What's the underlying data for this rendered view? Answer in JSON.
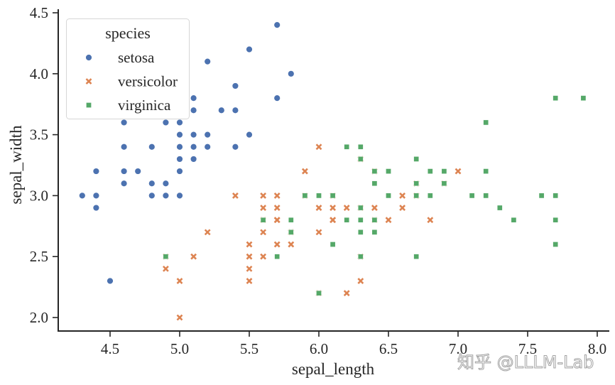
{
  "chart_data": {
    "type": "scatter",
    "title": "",
    "xlabel": "sepal_length",
    "ylabel": "sepal_width",
    "xlim": [
      4.18,
      8.09
    ],
    "ylim": [
      1.89,
      4.53
    ],
    "xticks": [
      4.5,
      5.0,
      5.5,
      6.0,
      6.5,
      7.0,
      7.5,
      8.0
    ],
    "xtick_labels": [
      "4.5",
      "5.0",
      "5.5",
      "6.0",
      "6.5",
      "7.0",
      "7.5",
      "8.0"
    ],
    "yticks": [
      2.0,
      2.5,
      3.0,
      3.5,
      4.0,
      4.5
    ],
    "ytick_labels": [
      "2.0",
      "2.5",
      "3.0",
      "3.5",
      "4.0",
      "4.5"
    ],
    "grid": false,
    "legend": {
      "title": "species",
      "placement": "top-left"
    },
    "series": [
      {
        "name": "setosa",
        "marker": "circle",
        "color": "#4c72b0",
        "points": [
          [
            4.3,
            3.0
          ],
          [
            4.4,
            3.0
          ],
          [
            4.4,
            2.9
          ],
          [
            4.4,
            3.2
          ],
          [
            4.5,
            2.3
          ],
          [
            4.6,
            3.1
          ],
          [
            4.6,
            3.2
          ],
          [
            4.6,
            3.4
          ],
          [
            4.6,
            3.6
          ],
          [
            4.7,
            3.2
          ],
          [
            4.8,
            3.0
          ],
          [
            4.8,
            3.1
          ],
          [
            4.8,
            3.4
          ],
          [
            4.9,
            3.0
          ],
          [
            4.9,
            3.1
          ],
          [
            4.9,
            3.6
          ],
          [
            5.0,
            3.0
          ],
          [
            5.0,
            3.2
          ],
          [
            5.0,
            3.3
          ],
          [
            5.0,
            3.4
          ],
          [
            5.0,
            3.5
          ],
          [
            5.0,
            3.6
          ],
          [
            5.1,
            3.3
          ],
          [
            5.1,
            3.4
          ],
          [
            5.1,
            3.5
          ],
          [
            5.1,
            3.7
          ],
          [
            5.1,
            3.8
          ],
          [
            5.2,
            3.4
          ],
          [
            5.2,
            3.5
          ],
          [
            5.2,
            4.1
          ],
          [
            5.3,
            3.7
          ],
          [
            5.4,
            3.4
          ],
          [
            5.4,
            3.7
          ],
          [
            5.4,
            3.9
          ],
          [
            5.5,
            3.5
          ],
          [
            5.5,
            4.2
          ],
          [
            5.7,
            3.8
          ],
          [
            5.7,
            4.4
          ],
          [
            5.8,
            4.0
          ]
        ]
      },
      {
        "name": "versicolor",
        "marker": "x",
        "color": "#dd8452",
        "points": [
          [
            7.0,
            3.2
          ],
          [
            6.4,
            3.2
          ],
          [
            6.9,
            3.1
          ],
          [
            5.5,
            2.3
          ],
          [
            6.5,
            2.8
          ],
          [
            5.7,
            2.8
          ],
          [
            6.3,
            3.3
          ],
          [
            4.9,
            2.4
          ],
          [
            6.6,
            2.9
          ],
          [
            5.2,
            2.7
          ],
          [
            5.0,
            2.0
          ],
          [
            5.9,
            3.0
          ],
          [
            6.0,
            2.2
          ],
          [
            6.1,
            2.9
          ],
          [
            5.6,
            2.9
          ],
          [
            6.7,
            3.1
          ],
          [
            5.6,
            3.0
          ],
          [
            5.8,
            2.7
          ],
          [
            6.2,
            2.2
          ],
          [
            5.6,
            2.5
          ],
          [
            5.9,
            3.2
          ],
          [
            6.1,
            2.8
          ],
          [
            6.3,
            2.5
          ],
          [
            6.4,
            2.9
          ],
          [
            6.6,
            3.0
          ],
          [
            6.8,
            2.8
          ],
          [
            6.7,
            3.0
          ],
          [
            6.0,
            2.9
          ],
          [
            5.7,
            2.6
          ],
          [
            5.5,
            2.4
          ],
          [
            5.8,
            2.7
          ],
          [
            6.0,
            2.7
          ],
          [
            5.4,
            3.0
          ],
          [
            6.0,
            3.4
          ],
          [
            6.3,
            2.3
          ],
          [
            5.5,
            2.5
          ],
          [
            5.5,
            2.6
          ],
          [
            6.1,
            3.0
          ],
          [
            5.8,
            2.6
          ],
          [
            5.0,
            2.3
          ],
          [
            5.6,
            2.7
          ],
          [
            5.7,
            3.0
          ],
          [
            5.7,
            2.9
          ],
          [
            6.2,
            2.9
          ],
          [
            5.1,
            2.5
          ],
          [
            4.9,
            2.5
          ],
          [
            5.6,
            2.8
          ],
          [
            6.3,
            2.9
          ],
          [
            6.1,
            2.8
          ],
          [
            6.4,
            2.8
          ],
          [
            5.7,
            2.8
          ]
        ]
      },
      {
        "name": "virginica",
        "marker": "square",
        "color": "#55a868",
        "points": [
          [
            6.3,
            3.3
          ],
          [
            5.8,
            2.7
          ],
          [
            7.1,
            3.0
          ],
          [
            6.3,
            2.9
          ],
          [
            6.5,
            3.0
          ],
          [
            7.6,
            3.0
          ],
          [
            4.9,
            2.5
          ],
          [
            7.3,
            2.9
          ],
          [
            6.7,
            2.5
          ],
          [
            7.2,
            3.6
          ],
          [
            6.5,
            3.2
          ],
          [
            6.4,
            2.7
          ],
          [
            6.8,
            3.0
          ],
          [
            5.7,
            2.5
          ],
          [
            5.8,
            2.8
          ],
          [
            6.4,
            3.2
          ],
          [
            7.7,
            3.8
          ],
          [
            7.7,
            2.6
          ],
          [
            6.0,
            2.2
          ],
          [
            6.9,
            3.2
          ],
          [
            5.6,
            2.8
          ],
          [
            7.7,
            2.8
          ],
          [
            6.7,
            3.3
          ],
          [
            7.2,
            3.2
          ],
          [
            6.2,
            2.8
          ],
          [
            6.1,
            3.0
          ],
          [
            6.4,
            2.8
          ],
          [
            7.2,
            3.0
          ],
          [
            7.4,
            2.8
          ],
          [
            7.9,
            3.8
          ],
          [
            6.1,
            2.6
          ],
          [
            7.7,
            3.0
          ],
          [
            6.3,
            3.4
          ],
          [
            6.4,
            3.1
          ],
          [
            6.0,
            3.0
          ],
          [
            6.9,
            3.1
          ],
          [
            6.7,
            3.1
          ],
          [
            5.8,
            2.7
          ],
          [
            6.8,
            3.2
          ],
          [
            6.7,
            3.0
          ],
          [
            6.3,
            2.5
          ],
          [
            6.5,
            3.0
          ],
          [
            6.2,
            3.4
          ],
          [
            5.9,
            3.0
          ],
          [
            6.3,
            2.7
          ],
          [
            6.4,
            2.8
          ],
          [
            6.1,
            2.6
          ],
          [
            6.3,
            2.8
          ],
          [
            6.2,
            3.4
          ]
        ]
      }
    ]
  },
  "watermark": "知乎 @LLLM-Lab"
}
